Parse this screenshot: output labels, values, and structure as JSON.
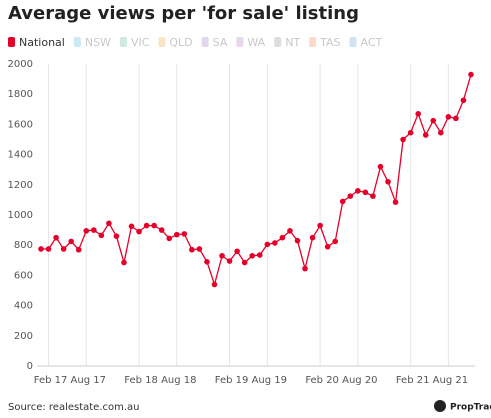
{
  "chart_data": {
    "type": "line",
    "title": "Average views per 'for sale' listing",
    "categories": [
      null,
      "Feb 17",
      null,
      null,
      null,
      null,
      "Aug 17",
      null,
      null,
      null,
      null,
      null,
      null,
      "Feb 18",
      null,
      null,
      null,
      null,
      "Aug 18",
      null,
      null,
      null,
      null,
      null,
      null,
      "Feb 19",
      null,
      null,
      null,
      null,
      "Aug 19",
      null,
      null,
      null,
      null,
      null,
      null,
      "Feb 20",
      null,
      null,
      null,
      null,
      "Aug 20",
      null,
      null,
      null,
      null,
      null,
      null,
      "Feb 21",
      null,
      null,
      null,
      null,
      "Aug 21",
      null,
      null,
      null
    ],
    "series": [
      {
        "name": "National",
        "color": "#e4002b",
        "values": [
          775,
          775,
          850,
          775,
          825,
          770,
          895,
          900,
          865,
          945,
          860,
          685,
          925,
          890,
          930,
          930,
          900,
          845,
          870,
          875,
          770,
          775,
          690,
          540,
          730,
          695,
          760,
          685,
          730,
          735,
          805,
          815,
          850,
          895,
          830,
          645,
          850,
          930,
          790,
          825,
          1090,
          1125,
          1160,
          1150,
          1125,
          1320,
          1220,
          1085,
          1500,
          1545,
          1670,
          1530,
          1625,
          1545,
          1650,
          1640,
          1760,
          1930
        ]
      }
    ],
    "inactive_series": [
      {
        "name": "NSW",
        "color": "#cbe9f6"
      },
      {
        "name": "VIC",
        "color": "#cfeadf"
      },
      {
        "name": "QLD",
        "color": "#fbe4c8"
      },
      {
        "name": "SA",
        "color": "#e2d6f0"
      },
      {
        "name": "WA",
        "color": "#e8d7ee"
      },
      {
        "name": "NT",
        "color": "#dedede"
      },
      {
        "name": "TAS",
        "color": "#fbdacb"
      },
      {
        "name": "ACT",
        "color": "#d1e2f3"
      }
    ],
    "ylim": [
      0,
      2000
    ],
    "yticks": [
      0,
      200,
      400,
      600,
      800,
      1000,
      1200,
      1400,
      1600,
      1800,
      2000
    ],
    "grid": "x",
    "source": "Source: realestate.com.au",
    "logo": "PropTrack"
  }
}
